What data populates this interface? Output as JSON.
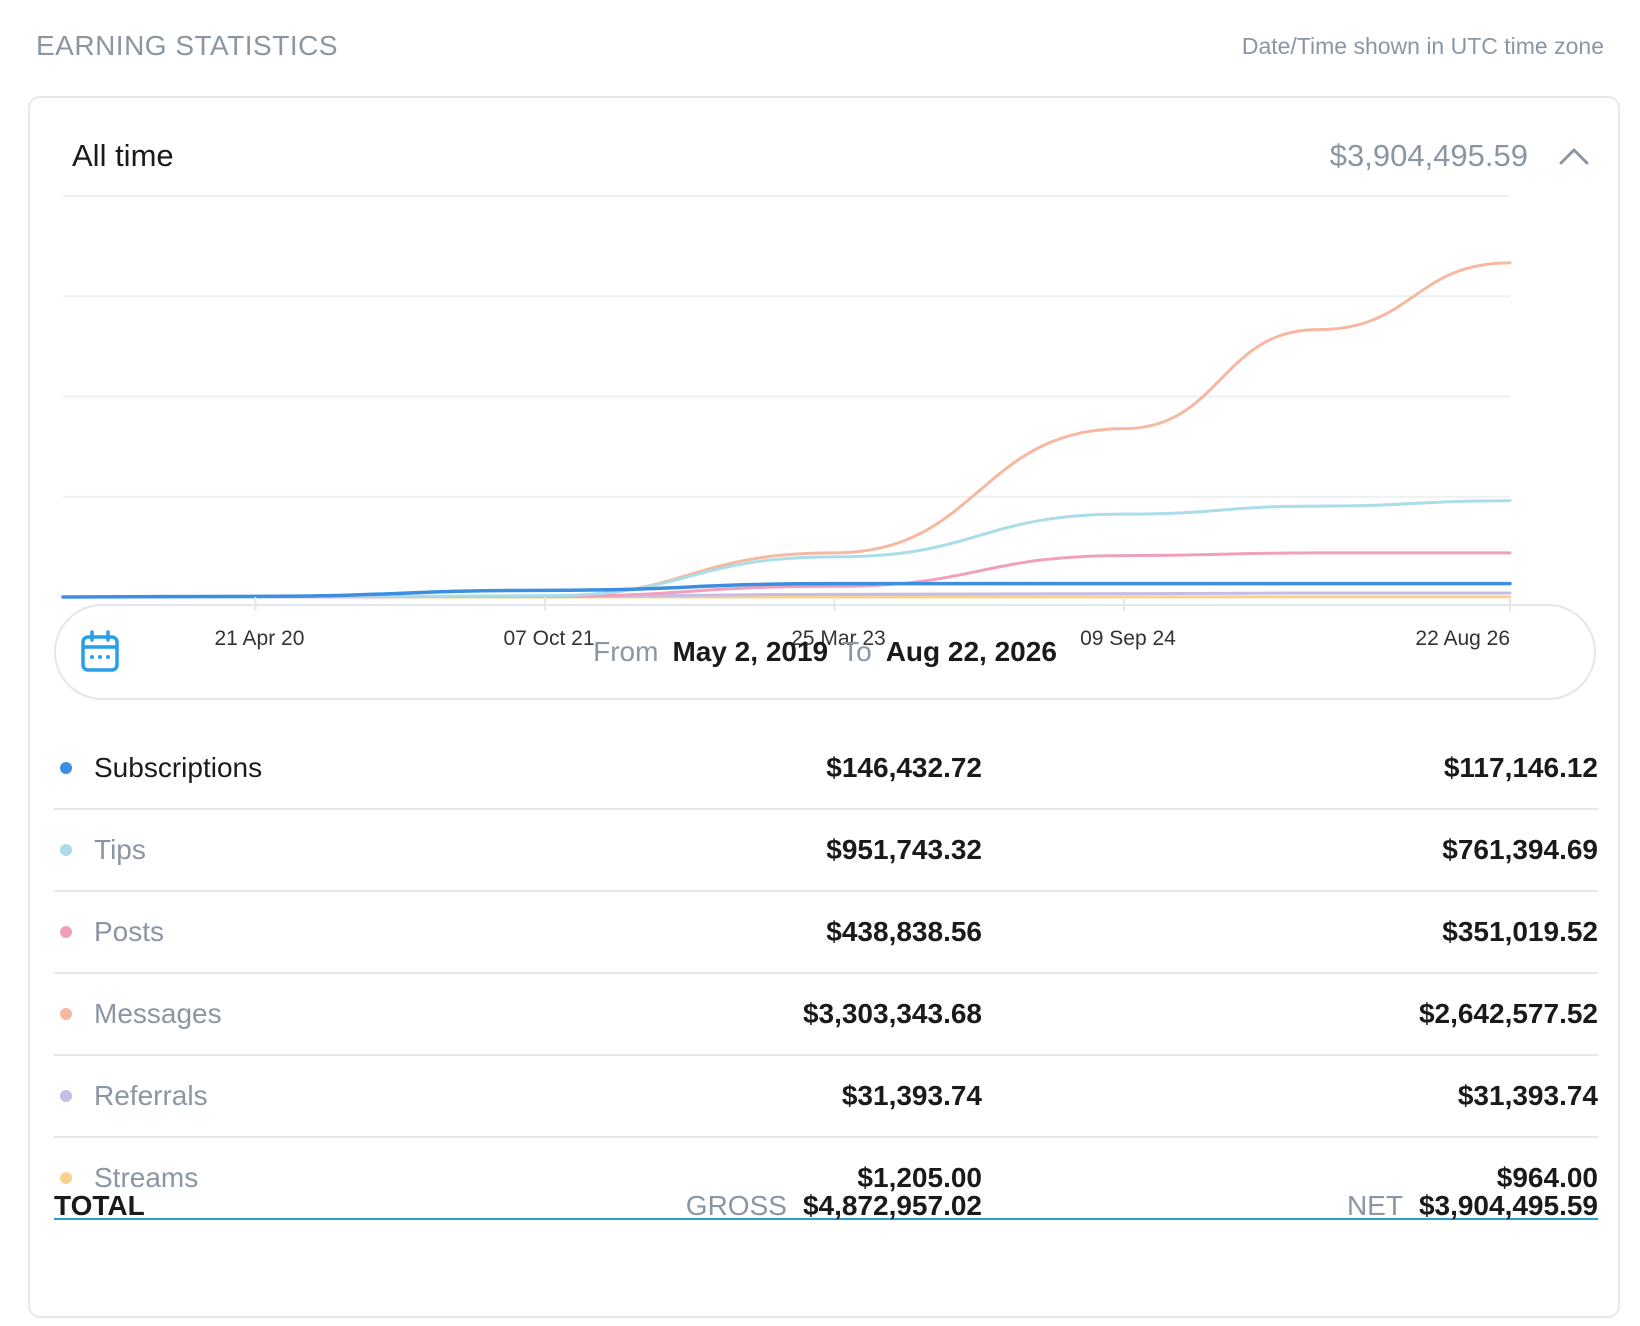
{
  "header": {
    "title": "EARNING STATISTICS",
    "timezone_note": "Date/Time shown in UTC time zone"
  },
  "card": {
    "period_label": "All time",
    "total_value": "$3,904,495.59"
  },
  "date_range": {
    "from_label": "From",
    "from_value": "May 2, 2019",
    "to_label": "To",
    "to_value": "Aug 22, 2026"
  },
  "categories": [
    {
      "label": "Subscriptions",
      "gross": "$146,432.72",
      "net": "$117,146.12",
      "color": "#3d8ee0",
      "active": true
    },
    {
      "label": "Tips",
      "gross": "$951,743.32",
      "net": "$761,394.69",
      "color": "#a8dde9",
      "active": false
    },
    {
      "label": "Posts",
      "gross": "$438,838.56",
      "net": "$351,019.52",
      "color": "#f0a0bc",
      "active": false
    },
    {
      "label": "Messages",
      "gross": "$3,303,343.68",
      "net": "$2,642,577.52",
      "color": "#f5b9a2",
      "active": false
    },
    {
      "label": "Referrals",
      "gross": "$31,393.74",
      "net": "$31,393.74",
      "color": "#c6bde6",
      "active": false
    },
    {
      "label": "Streams",
      "gross": "$1,205.00",
      "net": "$964.00",
      "color": "#f8d38f",
      "active": false
    }
  ],
  "totals": {
    "label": "TOTAL",
    "gross_tag": "GROSS",
    "gross_value": "$4,872,957.02",
    "net_tag": "NET",
    "net_value": "$3,904,495.59"
  },
  "chart_data": {
    "type": "line",
    "x": [
      "2019-05-02",
      "2020-04-21",
      "2021-10-07",
      "2023-03-25",
      "2024-09-09",
      "2025-09-01",
      "2026-08-22"
    ],
    "x_tick_labels": [
      "21 Apr 20",
      "07 Oct 21",
      "25 Mar 23",
      "09 Sep 24",
      "22 Aug 26"
    ],
    "ylim": [
      0,
      3000000
    ],
    "grid": true,
    "series": [
      {
        "name": "Subscriptions",
        "color": "#3d8ee0",
        "values": [
          0,
          5000,
          50000,
          100000,
          100000,
          100000,
          100000
        ]
      },
      {
        "name": "Tips",
        "color": "#a8dde9",
        "values": [
          0,
          0,
          10000,
          300000,
          620000,
          680000,
          720000
        ]
      },
      {
        "name": "Posts",
        "color": "#f0a0bc",
        "values": [
          0,
          0,
          5000,
          80000,
          310000,
          330000,
          330000
        ]
      },
      {
        "name": "Messages",
        "color": "#f5b9a2",
        "values": [
          0,
          0,
          5000,
          330000,
          1260000,
          2000000,
          2500000
        ]
      },
      {
        "name": "Referrals",
        "color": "#c6bde6",
        "values": [
          0,
          0,
          5000,
          20000,
          25000,
          30000,
          30000
        ]
      },
      {
        "name": "Streams",
        "color": "#f8d38f",
        "values": [
          0,
          0,
          0,
          0,
          500,
          1000,
          1000
        ]
      }
    ]
  }
}
